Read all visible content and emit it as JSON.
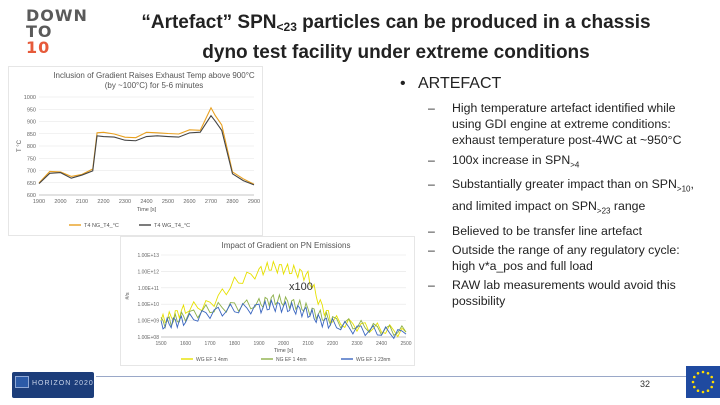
{
  "logo": {
    "line1": "DOWN",
    "line2": "TO",
    "line3": "10"
  },
  "title": {
    "part1": "“Artefact” SPN",
    "sub": "<23",
    "part2": " particles can be produced in a chassis",
    "line2": "dyno test facility under extreme conditions"
  },
  "bullet": {
    "dot": "•",
    "label": "ARTEFACT"
  },
  "subpoints": [
    {
      "dash": "–",
      "text": "High temperature artefact identified while using GDI engine at extreme conditions: exhaust temperature post-4WC at ~950°C"
    },
    {
      "dash": "–",
      "text": "100x increase in SPN>4"
    },
    {
      "dash": "–",
      "text": "Substantially greater impact than on SPN>10, and limited impact on SPN>23 range"
    },
    {
      "dash": "–",
      "text": "Believed to be transfer line artefact"
    },
    {
      "dash": "–",
      "text": "Outside the range of any regulatory cycle: high v*a_pos and full load"
    },
    {
      "dash": "–",
      "text": "RAW lab measurements would avoid this possibility"
    }
  ],
  "footer": {
    "page": "32",
    "eu_label": "HORIZON 2020"
  },
  "colors": {
    "orange": "#e8a020",
    "dark": "#444444",
    "blue": "#3a66c0",
    "yellow": "#e6e000",
    "green": "#8db04a",
    "logo_gray": "#5a5a5a",
    "logo_orange": "#e65a3a"
  },
  "chart_data": [
    {
      "type": "line",
      "title": "Inclusion of Gradient Raises Exhaust Temp above 900°C (by ~100°C) for 5-6 minutes",
      "xlabel": "Time [s]",
      "ylabel": "T °C",
      "xlim": [
        1900,
        2900
      ],
      "ylim": [
        600,
        1000
      ],
      "x_ticks": [
        "1900",
        "2000",
        "2100",
        "2200",
        "2300",
        "2400",
        "2500",
        "2600",
        "2700",
        "2800",
        "2900"
      ],
      "y_ticks": [
        "600",
        "650",
        "700",
        "750",
        "800",
        "850",
        "900",
        "950",
        "1000"
      ],
      "series": [
        {
          "name": "T4 NG_T4_°C",
          "color": "#e8a020",
          "x": [
            1900,
            1950,
            2000,
            2050,
            2100,
            2150,
            2170,
            2200,
            2250,
            2300,
            2350,
            2400,
            2450,
            2500,
            2550,
            2600,
            2650,
            2700,
            2720,
            2750,
            2800,
            2850,
            2900
          ],
          "y": [
            655,
            690,
            700,
            670,
            690,
            700,
            860,
            850,
            855,
            830,
            840,
            850,
            860,
            845,
            855,
            860,
            870,
            950,
            930,
            880,
            700,
            660,
            650
          ]
        },
        {
          "name": "T4 WG_T4_°C",
          "color": "#444444",
          "x": [
            1900,
            1950,
            2000,
            2050,
            2100,
            2150,
            2170,
            2200,
            2250,
            2300,
            2350,
            2400,
            2450,
            2500,
            2550,
            2600,
            2650,
            2700,
            2720,
            2750,
            2800,
            2850,
            2900
          ],
          "y": [
            650,
            685,
            695,
            665,
            685,
            695,
            845,
            835,
            840,
            820,
            825,
            835,
            845,
            835,
            840,
            850,
            860,
            920,
            905,
            860,
            690,
            655,
            645
          ]
        }
      ]
    },
    {
      "type": "line",
      "title": "Impact of Gradient on PN Emissions",
      "xlabel": "Time [s]",
      "ylabel": "#/s",
      "yscale": "log",
      "xlim": [
        1500,
        2500
      ],
      "x_ticks": [
        "1500",
        "1600",
        "1700",
        "1800",
        "1900",
        "2000",
        "2100",
        "2200",
        "2300",
        "2400",
        "2500"
      ],
      "y_ticks": [
        "1.00E+08",
        "1.00E+09",
        "1.00E+10",
        "1.00E+11",
        "1.00E+12",
        "1.00E+13"
      ],
      "annotation": "x100",
      "series": [
        {
          "name": "WG EF 1 4nm",
          "color": "#e6e000",
          "x": [
            1500,
            1550,
            1600,
            1700,
            1800,
            1900,
            1950,
            2000,
            2050,
            2100,
            2150,
            2200,
            2300,
            2400,
            2500
          ],
          "y": [
            1000000000.0,
            2000000000.0,
            5000000000.0,
            10000000000.0,
            200000000000.0,
            1000000000000.0,
            2000000000000.0,
            1500000000000.0,
            1000000000000.0,
            500000000000.0,
            10000000000.0,
            1000000000.0,
            500000000.0,
            300000000.0,
            200000000.0
          ]
        },
        {
          "name": "NG EF 1 4nm",
          "color": "#8db04a",
          "x": [
            1500,
            1550,
            1600,
            1700,
            1800,
            1900,
            1950,
            2000,
            2050,
            2100,
            2150,
            2200,
            2300,
            2400,
            2500
          ],
          "y": [
            800000000.0,
            1000000000.0,
            2000000000.0,
            5000000000.0,
            8000000000.0,
            10000000000.0,
            20000000000.0,
            15000000000.0,
            10000000000.0,
            5000000000.0,
            2000000000.0,
            1000000000.0,
            500000000.0,
            300000000.0,
            200000000.0
          ]
        },
        {
          "name": "WG EF 1 23nm",
          "color": "#3a66c0",
          "x": [
            1500,
            1550,
            1600,
            1700,
            1800,
            1900,
            1950,
            2000,
            2050,
            2100,
            2150,
            2200,
            2300,
            2400,
            2500
          ],
          "y": [
            500000000.0,
            800000000.0,
            1000000000.0,
            3000000000.0,
            5000000000.0,
            6000000000.0,
            8000000000.0,
            7000000000.0,
            5000000000.0,
            3000000000.0,
            1000000000.0,
            600000000.0,
            300000000.0,
            200000000.0,
            150000000.0
          ]
        }
      ]
    }
  ]
}
